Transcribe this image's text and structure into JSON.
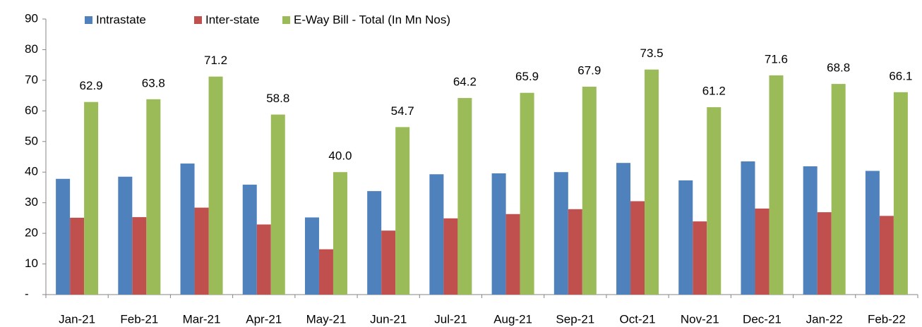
{
  "chart_data": {
    "type": "bar",
    "categories": [
      "Jan-21",
      "Feb-21",
      "Mar-21",
      "Apr-21",
      "May-21",
      "Jun-21",
      "Jul-21",
      "Aug-21",
      "Sep-21",
      "Oct-21",
      "Nov-21",
      "Dec-21",
      "Jan-22",
      "Feb-22"
    ],
    "series": [
      {
        "name": "Intrastate",
        "color": "#4f81bd",
        "values": [
          37.8,
          38.5,
          42.8,
          35.9,
          25.2,
          33.8,
          39.3,
          39.6,
          40.0,
          43.0,
          37.3,
          43.5,
          41.9,
          40.4
        ]
      },
      {
        "name": "Inter-state",
        "color": "#c0504d",
        "values": [
          25.1,
          25.3,
          28.4,
          22.9,
          14.8,
          20.9,
          24.9,
          26.3,
          27.9,
          30.5,
          23.9,
          28.1,
          26.9,
          25.7
        ]
      },
      {
        "name": "E-Way Bill - Total (In Mn Nos)",
        "color": "#9bbb59",
        "values": [
          62.9,
          63.8,
          71.2,
          58.8,
          40.0,
          54.7,
          64.2,
          65.9,
          67.9,
          73.5,
          61.2,
          71.6,
          68.8,
          66.1
        ],
        "value_labels": [
          "62.9",
          "63.8",
          "71.2",
          "58.8",
          "40.0",
          "54.7",
          "64.2",
          "65.9",
          "67.9",
          "73.5",
          "61.2",
          "71.6",
          "68.8",
          "66.1"
        ]
      }
    ],
    "ylim": [
      0,
      90
    ],
    "yticks": [
      {
        "value": 0,
        "label": "-"
      },
      10,
      20,
      30,
      40,
      50,
      60,
      70,
      80,
      90
    ],
    "grid": false
  }
}
